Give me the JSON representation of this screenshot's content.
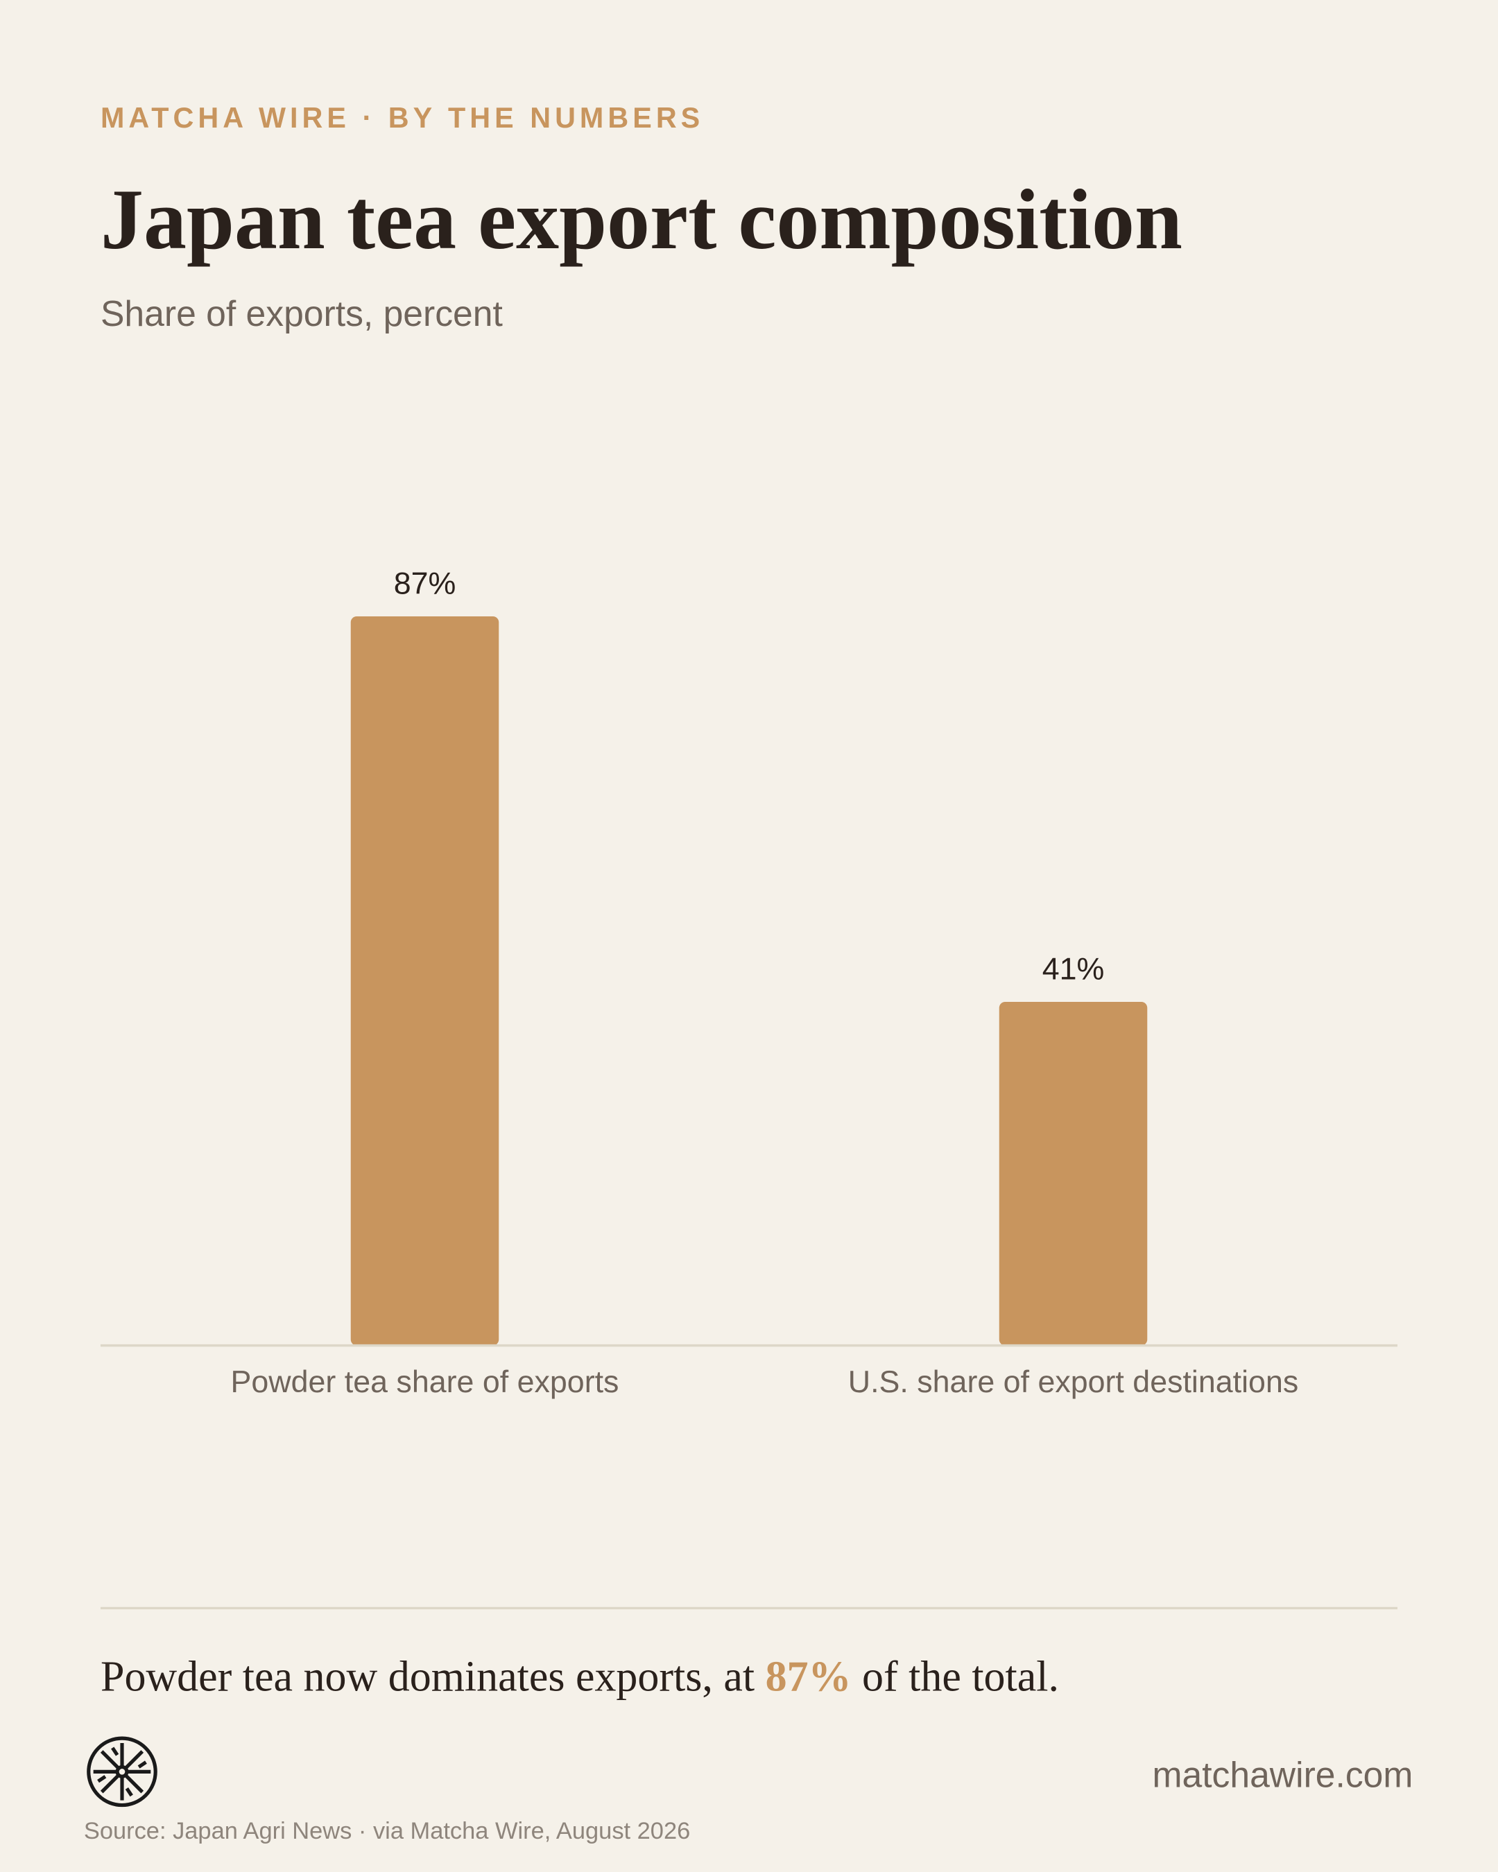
{
  "chart_data": {
    "type": "bar",
    "kicker": "MATCHA WIRE · BY THE NUMBERS",
    "title": "Japan tea export composition",
    "subtitle": "Share of exports, percent",
    "categories": [
      "Powder tea share of exports",
      "U.S. share of export destinations"
    ],
    "values": [
      87,
      41
    ],
    "value_labels": [
      "87%",
      "41%"
    ],
    "color": "#c8955e",
    "ylim": [
      0,
      100
    ]
  },
  "footer": {
    "takeaway": {
      "before": "Powder tea now dominates exports, at ",
      "highlight": "87%",
      "after": " of the total."
    },
    "site": "matchawire.com",
    "source": "Source: Japan Agri News · via Matcha Wire, August 2026"
  }
}
